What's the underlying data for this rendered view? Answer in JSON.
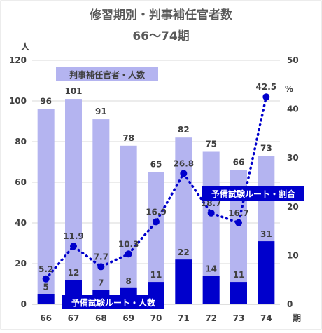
{
  "title_line1": "修習期別・判事補任官者数",
  "title_line2": "66～74期",
  "chart_data": {
    "type": "bar",
    "categories": [
      "66",
      "67",
      "68",
      "69",
      "70",
      "71",
      "72",
      "73",
      "74"
    ],
    "x_unit": "期",
    "series": [
      {
        "name": "判事補任官者・人数",
        "kind": "bar",
        "axis": "left",
        "color": "#b4b4f0",
        "values": [
          96,
          101,
          91,
          78,
          65,
          82,
          75,
          66,
          73
        ]
      },
      {
        "name": "予備試験ルート・人数",
        "kind": "bar",
        "axis": "left",
        "color": "#0000cc",
        "values": [
          5,
          12,
          7,
          8,
          11,
          22,
          14,
          11,
          31
        ]
      },
      {
        "name": "予備試験ルート・割合",
        "kind": "line",
        "line_style": "dotted",
        "axis": "right",
        "color": "#0000cc",
        "values": [
          5.2,
          11.9,
          7.7,
          10.3,
          16.9,
          26.8,
          18.7,
          16.7,
          42.5
        ]
      }
    ],
    "y_left": {
      "unit": "人",
      "range": [
        0,
        120
      ],
      "ticks": [
        "0",
        "20",
        "40",
        "60",
        "80",
        "100",
        "120"
      ]
    },
    "y_right": {
      "unit": "%",
      "range": [
        0,
        50
      ],
      "ticks": [
        "0",
        "10",
        "20",
        "30",
        "40",
        "50"
      ]
    },
    "grid": true
  }
}
